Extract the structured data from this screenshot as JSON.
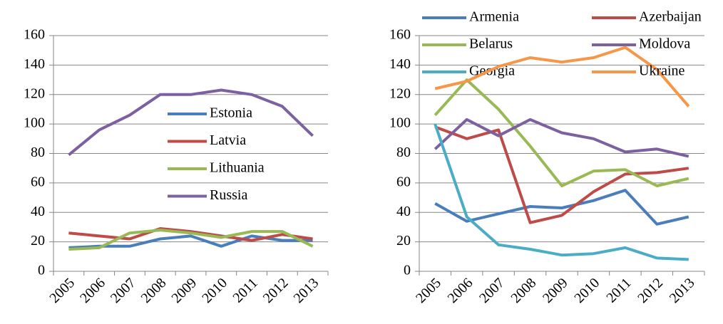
{
  "chart_data": [
    {
      "type": "line",
      "categories": [
        "2005",
        "2006",
        "2007",
        "2008",
        "2009",
        "2010",
        "2011",
        "2012",
        "2013"
      ],
      "ylim": [
        0,
        160
      ],
      "yticks": [
        0,
        20,
        40,
        60,
        80,
        100,
        120,
        140,
        160
      ],
      "grid": true,
      "legend": "center",
      "series": [
        {
          "name": "Estonia",
          "color": "#4a7ebb",
          "values": [
            16,
            17,
            17,
            22,
            24,
            17,
            24,
            21,
            21
          ]
        },
        {
          "name": "Latvia",
          "color": "#be4b48",
          "values": [
            26,
            24,
            22,
            29,
            27,
            24,
            21,
            25,
            22
          ]
        },
        {
          "name": "Lithuania",
          "color": "#98b954",
          "values": [
            15,
            16,
            26,
            28,
            26,
            23,
            27,
            27,
            17
          ]
        },
        {
          "name": "Russia",
          "color": "#7d60a0",
          "values": [
            79,
            96,
            106,
            120,
            120,
            123,
            120,
            112,
            92
          ]
        }
      ]
    },
    {
      "type": "line",
      "categories": [
        "2005",
        "2006",
        "2007",
        "2008",
        "2009",
        "2010",
        "2011",
        "2012",
        "2013"
      ],
      "ylim": [
        0,
        160
      ],
      "yticks": [
        0,
        20,
        40,
        60,
        80,
        100,
        120,
        140,
        160
      ],
      "grid": true,
      "legend": "top",
      "series": [
        {
          "name": "Armenia",
          "color": "#4a7ebb",
          "values": [
            46,
            34,
            39,
            44,
            43,
            48,
            55,
            32,
            37
          ]
        },
        {
          "name": "Azerbaijan",
          "color": "#be4b48",
          "values": [
            98,
            90,
            96,
            33,
            38,
            54,
            66,
            67,
            70
          ]
        },
        {
          "name": "Belarus",
          "color": "#98b954",
          "values": [
            106,
            130,
            110,
            85,
            58,
            68,
            69,
            58,
            63
          ]
        },
        {
          "name": "Moldova",
          "color": "#7d60a0",
          "values": [
            83,
            103,
            92,
            103,
            94,
            90,
            81,
            83,
            78
          ]
        },
        {
          "name": "Georgia",
          "color": "#4bacc6",
          "values": [
            100,
            37,
            18,
            15,
            11,
            12,
            16,
            9,
            8
          ]
        },
        {
          "name": "Ukraine",
          "color": "#f79646",
          "values": [
            124,
            129,
            139,
            145,
            142,
            145,
            152,
            137,
            112
          ]
        }
      ]
    }
  ]
}
